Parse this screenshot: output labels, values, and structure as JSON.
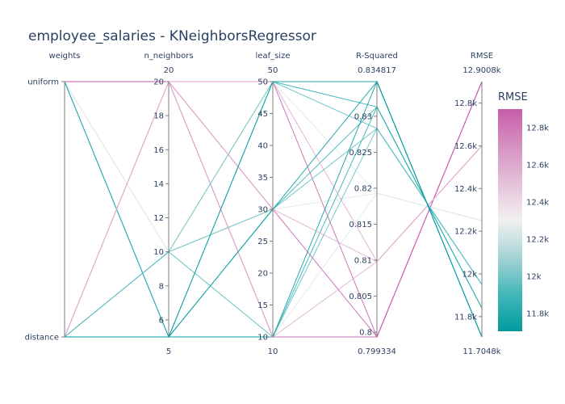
{
  "chart_data": {
    "type": "parallel_coordinates",
    "title": "employee_salaries - KNeighborsRegressor",
    "dimensions": [
      {
        "name": "weights",
        "kind": "categorical",
        "categories": [
          "uniform",
          "distance"
        ],
        "range_labels": [
          "",
          ""
        ]
      },
      {
        "name": "n_neighbors",
        "kind": "numeric",
        "range": [
          5,
          20
        ],
        "ticks": [
          6,
          8,
          10,
          12,
          14,
          16,
          18,
          20
        ],
        "range_labels": [
          "20",
          "5"
        ]
      },
      {
        "name": "leaf_size",
        "kind": "numeric",
        "range": [
          10,
          50
        ],
        "ticks": [
          10,
          15,
          20,
          25,
          30,
          35,
          40,
          45,
          50
        ],
        "range_labels": [
          "50",
          "10"
        ]
      },
      {
        "name": "R-Squared",
        "kind": "numeric",
        "range": [
          0.799334,
          0.834817
        ],
        "ticks": [
          0.8,
          0.805,
          0.81,
          0.815,
          0.82,
          0.825,
          0.83
        ],
        "tick_labels": [
          "0.8",
          "0.805",
          "0.81",
          "0.815",
          "0.82",
          "0.825",
          "0.83"
        ],
        "range_labels": [
          "0.834817",
          "0.799334"
        ]
      },
      {
        "name": "RMSE",
        "kind": "numeric",
        "range": [
          11704.8,
          12900.8
        ],
        "ticks": [
          11800,
          12000,
          12200,
          12400,
          12600,
          12800
        ],
        "tick_labels": [
          "11.8k",
          "12k",
          "12.2k",
          "12.4k",
          "12.6k",
          "12.8k"
        ],
        "range_labels": [
          "12.9008k",
          "11.7048k"
        ]
      }
    ],
    "color_by": "RMSE",
    "colorbar": {
      "title": "RMSE",
      "ticks": [
        11800,
        12000,
        12200,
        12400,
        12600,
        12800
      ],
      "tick_labels": [
        "11.8k",
        "12k",
        "12.2k",
        "12.4k",
        "12.6k",
        "12.8k"
      ],
      "colorscale": [
        "#009B9E",
        "#42B7B9",
        "#A7D3D4",
        "#F1F1F1",
        "#E4C1D9",
        "#D691C1",
        "#C75DAB"
      ]
    },
    "rows": [
      {
        "weights": "uniform",
        "n_neighbors": 20,
        "leaf_size": 10,
        "R-Squared": 0.799334,
        "RMSE": 12900.8
      },
      {
        "weights": "uniform",
        "n_neighbors": 20,
        "leaf_size": 30,
        "R-Squared": 0.799334,
        "RMSE": 12900.8
      },
      {
        "weights": "uniform",
        "n_neighbors": 20,
        "leaf_size": 50,
        "R-Squared": 0.799334,
        "RMSE": 12900.8
      },
      {
        "weights": "uniform",
        "n_neighbors": 10,
        "leaf_size": 10,
        "R-Squared": 0.8193,
        "RMSE": 12250
      },
      {
        "weights": "uniform",
        "n_neighbors": 10,
        "leaf_size": 30,
        "R-Squared": 0.8193,
        "RMSE": 12250
      },
      {
        "weights": "uniform",
        "n_neighbors": 10,
        "leaf_size": 50,
        "R-Squared": 0.8193,
        "RMSE": 12250
      },
      {
        "weights": "uniform",
        "n_neighbors": 5,
        "leaf_size": 10,
        "R-Squared": 0.8313,
        "RMSE": 11840
      },
      {
        "weights": "uniform",
        "n_neighbors": 5,
        "leaf_size": 30,
        "R-Squared": 0.8313,
        "RMSE": 11840
      },
      {
        "weights": "uniform",
        "n_neighbors": 5,
        "leaf_size": 50,
        "R-Squared": 0.8313,
        "RMSE": 11840
      },
      {
        "weights": "distance",
        "n_neighbors": 20,
        "leaf_size": 10,
        "R-Squared": 0.8098,
        "RMSE": 12600
      },
      {
        "weights": "distance",
        "n_neighbors": 20,
        "leaf_size": 30,
        "R-Squared": 0.8098,
        "RMSE": 12600
      },
      {
        "weights": "distance",
        "n_neighbors": 20,
        "leaf_size": 50,
        "R-Squared": 0.8098,
        "RMSE": 12600
      },
      {
        "weights": "distance",
        "n_neighbors": 10,
        "leaf_size": 10,
        "R-Squared": 0.8283,
        "RMSE": 11950
      },
      {
        "weights": "distance",
        "n_neighbors": 10,
        "leaf_size": 30,
        "R-Squared": 0.8283,
        "RMSE": 11950
      },
      {
        "weights": "distance",
        "n_neighbors": 10,
        "leaf_size": 50,
        "R-Squared": 0.8283,
        "RMSE": 11950
      },
      {
        "weights": "distance",
        "n_neighbors": 5,
        "leaf_size": 10,
        "R-Squared": 0.834817,
        "RMSE": 11704.8
      },
      {
        "weights": "distance",
        "n_neighbors": 5,
        "leaf_size": 30,
        "R-Squared": 0.834817,
        "RMSE": 11704.8
      },
      {
        "weights": "distance",
        "n_neighbors": 5,
        "leaf_size": 50,
        "R-Squared": 0.834817,
        "RMSE": 11704.8
      }
    ]
  }
}
